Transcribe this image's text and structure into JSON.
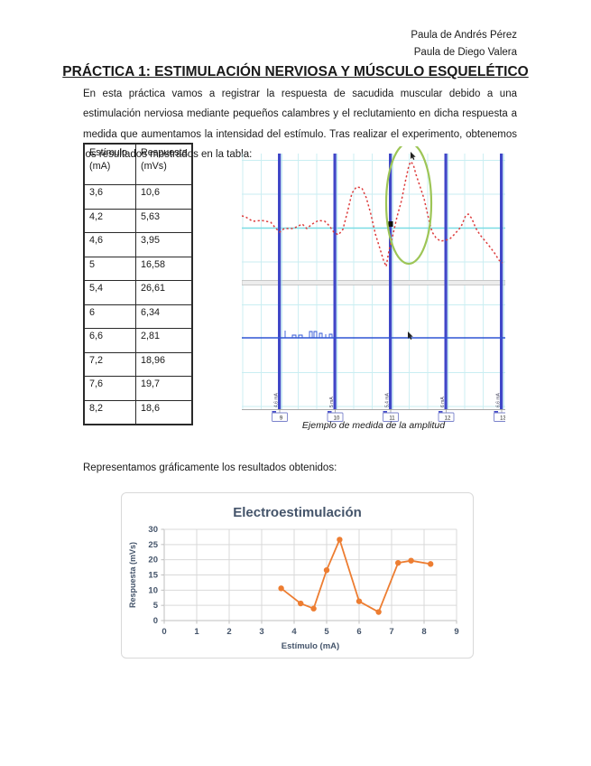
{
  "header": {
    "line1": "Paula de Andrés Pérez",
    "line2": "Paula de Diego Valera"
  },
  "title": "PRÁCTICA 1: ESTIMULACIÓN NERVIOSA Y MÚSCULO ESQUELÉTICO",
  "intro": "En esta práctica vamos a registrar la respuesta de sacudida muscular debido a una estimulación nerviosa mediante pequeños calambres y el reclutamiento en dicha respuesta a medida que aumentamos la intensidad del estímulo. Tras realizar el experimento, obtenemos los resultados mostrados en la tabla:",
  "results_table": {
    "columns": [
      {
        "name": "Estímulo",
        "unit": "(mA)"
      },
      {
        "name": "Respuesta",
        "unit": "(mVs)"
      }
    ],
    "rows": [
      [
        "3,6",
        "10,6"
      ],
      [
        "4,2",
        "5,63"
      ],
      [
        "4,6",
        "3,95"
      ],
      [
        "5",
        "16,58"
      ],
      [
        "5,4",
        "26,61"
      ],
      [
        "6",
        "6,34"
      ],
      [
        "6,6",
        "2,81"
      ],
      [
        "7,2",
        "18,96"
      ],
      [
        "7,6",
        "19,7"
      ],
      [
        "8,2",
        "18,6"
      ]
    ]
  },
  "scope": {
    "caption": "Ejemplo de medida de la amplitud",
    "markers": [
      {
        "label": "4,6 mA",
        "number": "9"
      },
      {
        "label": "5 mA",
        "number": "10"
      },
      {
        "label": "5,4 mA",
        "number": "11"
      },
      {
        "label": "6 mA",
        "number": "12"
      },
      {
        "label": "6,6 mA",
        "number": "13"
      }
    ]
  },
  "graph_intro": "Representamos gráficamente los resultados obtenidos:",
  "chart_data": {
    "type": "scatter",
    "connected": true,
    "title": "Electroestimulación",
    "xlabel": "Estímulo (mA)",
    "ylabel": "Respuesta (mVs)",
    "x": [
      3.6,
      4.2,
      4.6,
      5,
      5.4,
      6,
      6.6,
      7.2,
      7.6,
      8.2
    ],
    "y": [
      10.6,
      5.63,
      3.95,
      16.58,
      26.61,
      6.34,
      2.81,
      18.96,
      19.7,
      18.6
    ],
    "xlim": [
      0,
      9
    ],
    "ylim": [
      0,
      30
    ],
    "x_tick_step": 1,
    "y_tick_step": 5,
    "grid": true,
    "legend": null
  },
  "colors": {
    "chart_accent": "#ED7D31",
    "chart_text": "#44546A",
    "chart_grid": "#D9D9D9",
    "chart_axis": "#BFBFBF",
    "trace_red": "#DD3B3B",
    "marker_blue": "#4047C8",
    "marker_highlight": "#AEE4EE",
    "stim_blue": "#2F55D4",
    "grid_cyan": "#C9EEF2",
    "grid_cyan_strong": "#7ADDE4",
    "ellipse_green": "#9DC556"
  }
}
